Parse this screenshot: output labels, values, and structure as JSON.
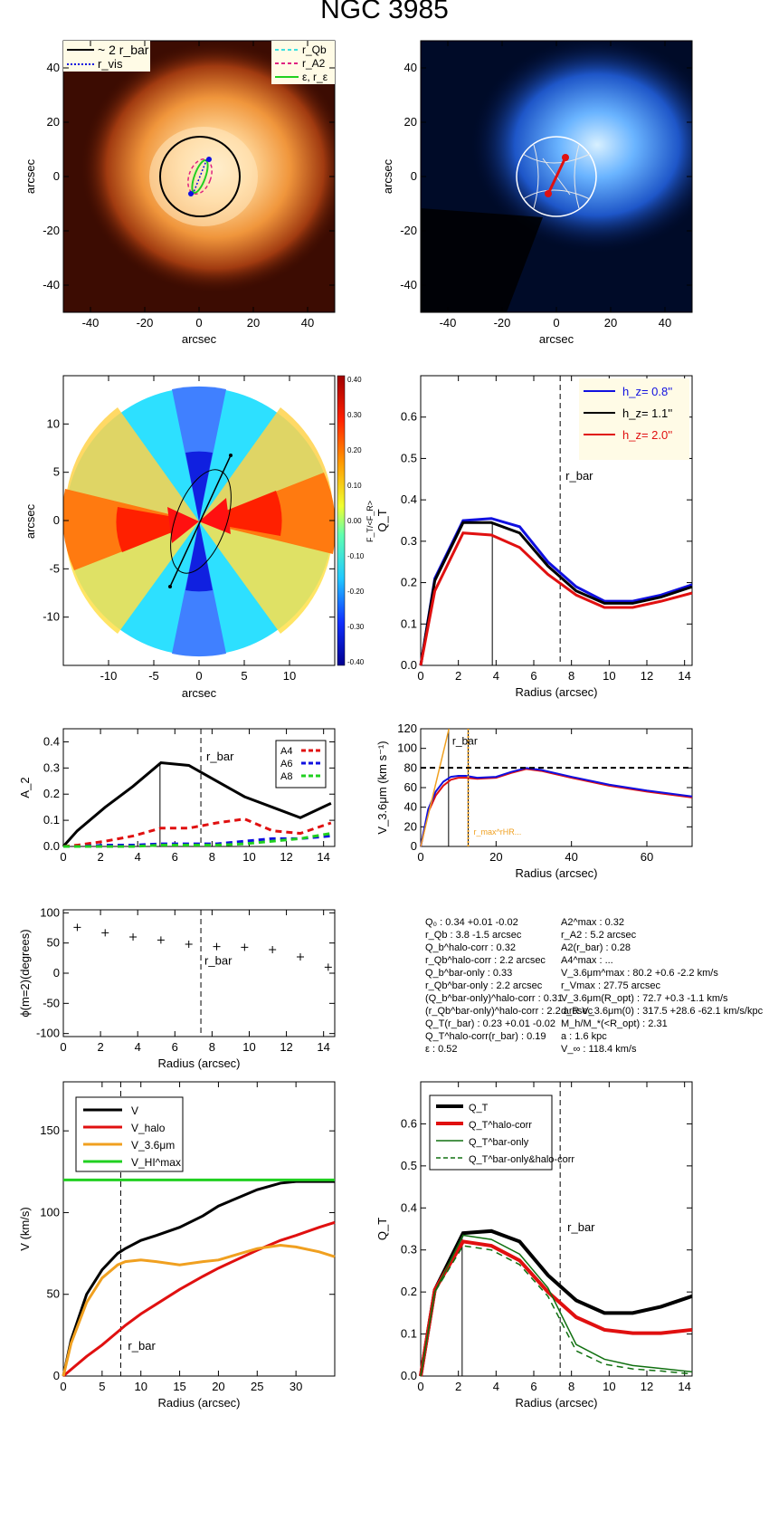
{
  "figure_title": "NGC 3985",
  "colors": {
    "black": "#000000",
    "blue": "#1010e0",
    "red": "#e01010",
    "orange": "#f0a020",
    "green": "#20d020",
    "cyan": "#40e0e0",
    "magenta": "#e02080",
    "darkgreen": "#107010"
  },
  "params": [
    "Q₀ : 0.34 +0.01 -0.02",
    "r_Qb : 3.8 -1.5 arcsec",
    "Q_b^halo-corr : 0.32",
    "r_Qb^halo-corr : 2.2 arcsec",
    "Q_b^bar-only : 0.33",
    "r_Qb^bar-only : 2.2 arcsec",
    "(Q_b^bar-only)^halo-corr : 0.31",
    "(r_Qb^bar-only)^halo-corr : 2.2 arcsec",
    "Q_T(r_bar) : 0.23 +0.01 -0.02",
    "Q_T^halo-corr(r_bar) : 0.19",
    "ε : 0.52",
    "A2^max : 0.32",
    "r_A2 : 5.2 arcsec",
    "A2(r_bar) : 0.28",
    "A4^max : ...",
    "V_3.6μm^max : 80.2 +0.6 -2.2 km/s",
    "r_Vmax : 27.75 arcsec",
    "V_3.6μm(R_opt) : 72.7 +0.3 -1.1 km/s",
    "d_R V_3.6μm(0) : 317.5 +28.6 -62.1 km/s/kpc",
    "M_h/M_*(<R_opt) : 2.31",
    "a : 1.6 kpc",
    "V_∞ : 118.4 km/s"
  ],
  "chart_data": [
    {
      "type": "heatmap",
      "panel": "image-contours",
      "xlabel": "arcsec",
      "ylabel": "arcsec",
      "xlim": [
        -50,
        50
      ],
      "ylim": [
        -50,
        50
      ],
      "xticks": [
        -40,
        -20,
        0,
        20,
        40
      ],
      "yticks": [
        -40,
        -20,
        0,
        20,
        40
      ],
      "legend_left": [
        "~ 2 r_bar",
        "r_vis"
      ],
      "legend_right": [
        "r_Qb",
        "r_A2",
        "ε, r_ε"
      ],
      "bar_radius_x2_arcsec": 14.8,
      "bar_pa_deg": 20
    },
    {
      "type": "heatmap",
      "panel": "force-field",
      "xlabel": "arcsec",
      "ylabel": "arcsec",
      "xlim": [
        -50,
        50
      ],
      "ylim": [
        -50,
        50
      ],
      "xticks": [
        -40,
        -20,
        0,
        20,
        40
      ],
      "yticks": [
        -40,
        -20,
        0,
        20,
        40
      ]
    },
    {
      "type": "heatmap",
      "panel": "tangential-force-ratio-map",
      "xlabel": "arcsec",
      "ylabel": "arcsec",
      "xlim": [
        -15,
        15
      ],
      "ylim": [
        -15,
        15
      ],
      "xticks": [
        -10,
        -5,
        0,
        5,
        10
      ],
      "yticks": [
        -10,
        -5,
        0,
        5,
        10
      ],
      "colorbar_label": "F_T/<F_R>",
      "colorbar_ticks": [
        "0.40",
        "0.30",
        "0.20",
        "0.10",
        "0.00",
        "-0.10",
        "-0.20",
        "-0.30",
        "-0.40"
      ],
      "range": [
        -0.4,
        0.4
      ]
    },
    {
      "type": "line",
      "panel": "QT-vs-radius",
      "xlabel": "Radius (arcsec)",
      "ylabel": "Q_T",
      "xlim": [
        0,
        14.4
      ],
      "ylim": [
        0,
        0.7
      ],
      "xticks": [
        0,
        2,
        4,
        6,
        8,
        10,
        12,
        14
      ],
      "yticks": [
        0.0,
        0.1,
        0.2,
        0.3,
        0.4,
        0.5,
        0.6
      ],
      "x": [
        0,
        0.75,
        2.25,
        3.75,
        5.25,
        6.75,
        8.25,
        9.75,
        11.25,
        12.75,
        14.4
      ],
      "series": [
        {
          "name": "h_z= 0.8''",
          "color": "blue",
          "values": [
            0,
            0.21,
            0.35,
            0.355,
            0.335,
            0.25,
            0.19,
            0.155,
            0.155,
            0.17,
            0.195
          ]
        },
        {
          "name": "h_z= 1.1''",
          "color": "black",
          "values": [
            0,
            0.205,
            0.345,
            0.345,
            0.32,
            0.24,
            0.18,
            0.15,
            0.15,
            0.165,
            0.19
          ]
        },
        {
          "name": "h_z= 2.0''",
          "color": "red",
          "values": [
            0,
            0.18,
            0.32,
            0.315,
            0.285,
            0.22,
            0.17,
            0.14,
            0.14,
            0.155,
            0.175
          ]
        }
      ],
      "vlines": [
        {
          "x": 3.8,
          "style": "solid"
        },
        {
          "x": 7.4,
          "style": "dashed",
          "label": "r_bar"
        }
      ]
    },
    {
      "type": "line",
      "panel": "fourier-amplitudes",
      "xlabel": "",
      "ylabel": "A_2",
      "xlim": [
        0,
        14.6
      ],
      "ylim": [
        0,
        0.45
      ],
      "xticks": [
        0,
        2,
        4,
        6,
        8,
        10,
        12,
        14
      ],
      "yticks": [
        0.0,
        0.1,
        0.2,
        0.3,
        0.4
      ],
      "x": [
        0,
        0.75,
        2.25,
        3.75,
        5.25,
        6.75,
        8.25,
        9.75,
        11.25,
        12.75,
        14.4
      ],
      "series": [
        {
          "name": "A2",
          "color": "black",
          "values": [
            0,
            0.06,
            0.15,
            0.23,
            0.32,
            0.31,
            0.25,
            0.19,
            0.15,
            0.11,
            0.165
          ]
        },
        {
          "name": "A4",
          "color": "red",
          "dashed": true,
          "values": [
            0,
            0.005,
            0.02,
            0.04,
            0.07,
            0.07,
            0.09,
            0.105,
            0.06,
            0.05,
            0.09
          ]
        },
        {
          "name": "A6",
          "color": "blue",
          "dashed": true,
          "values": [
            0,
            0,
            0.005,
            0.005,
            0.01,
            0.01,
            0.01,
            0.02,
            0.03,
            0.03,
            0.04
          ]
        },
        {
          "name": "A8",
          "color": "green",
          "dashed": true,
          "values": [
            0,
            0,
            0,
            0.0,
            0.005,
            0.005,
            0.005,
            0.01,
            0.02,
            0.03,
            0.05
          ]
        }
      ],
      "legend": [
        "A4",
        "A6",
        "A8"
      ],
      "vlines": [
        {
          "x": 5.2,
          "style": "solid"
        },
        {
          "x": 7.4,
          "style": "dashed",
          "label": "r_bar"
        }
      ]
    },
    {
      "type": "line",
      "panel": "rotation-curve-3.6um",
      "xlabel": "Radius (arcsec)",
      "ylabel": "V_3.6μm (km s⁻¹)",
      "xlim": [
        0,
        72
      ],
      "ylim": [
        0,
        120
      ],
      "xticks": [
        0,
        20,
        40,
        60
      ],
      "yticks": [
        0,
        20,
        40,
        60,
        80,
        100,
        120
      ],
      "x": [
        0,
        2,
        4,
        6,
        8,
        10,
        12,
        15,
        20,
        24,
        28,
        32,
        40,
        50,
        60,
        72
      ],
      "series": [
        {
          "name": "V_3.6μm",
          "color": "red",
          "values": [
            0,
            35,
            52,
            62,
            68,
            70,
            70,
            69,
            70,
            75,
            79,
            77,
            70,
            62,
            56,
            50
          ]
        },
        {
          "name": "V_3.6μm upper",
          "color": "blue",
          "values": [
            0,
            38,
            56,
            66,
            71,
            72,
            72,
            70,
            71,
            76,
            80,
            78,
            71,
            63,
            57,
            51
          ]
        }
      ],
      "hline": 80.2,
      "vlines": [
        {
          "x": 7.4,
          "label": "r_bar"
        },
        {
          "x": 12.6,
          "label": "r_max^rHR..."
        }
      ]
    },
    {
      "type": "scatter",
      "panel": "bar-phase",
      "xlabel": "Radius (arcsec)",
      "ylabel": "ϕ(m=2)(degrees)",
      "xlim": [
        0,
        14.6
      ],
      "ylim": [
        -105,
        105
      ],
      "xticks": [
        0,
        2,
        4,
        6,
        8,
        10,
        12,
        14
      ],
      "yticks": [
        -100,
        -50,
        0,
        50,
        100
      ],
      "x": [
        0.75,
        2.25,
        3.75,
        5.25,
        6.75,
        8.25,
        9.75,
        11.25,
        12.75,
        14.25
      ],
      "values": [
        76,
        67,
        60,
        55,
        48,
        44,
        43,
        39,
        27,
        10
      ],
      "vlines": [
        {
          "x": 7.4,
          "style": "dashed",
          "label": "r_bar"
        }
      ]
    },
    {
      "type": "line",
      "panel": "velocity-decomposition",
      "xlabel": "Radius (arcsec)",
      "ylabel": "V (km/s)",
      "xlim": [
        0,
        35
      ],
      "ylim": [
        0,
        180
      ],
      "xticks": [
        0,
        5,
        10,
        15,
        20,
        25,
        30
      ],
      "yticks": [
        0,
        50,
        100,
        150
      ],
      "x": [
        0,
        1,
        3,
        5,
        7,
        8,
        10,
        12,
        15,
        18,
        20,
        25,
        28,
        30,
        33,
        35
      ],
      "series": [
        {
          "name": "V",
          "color": "black",
          "values": [
            0,
            22,
            50,
            65,
            75,
            78,
            83,
            86,
            91,
            98,
            104,
            114,
            118,
            119,
            119,
            119
          ]
        },
        {
          "name": "V_halo",
          "color": "red",
          "values": [
            0,
            4,
            12,
            19,
            27,
            31,
            38,
            44,
            53,
            61,
            66,
            77,
            83,
            86,
            91,
            94
          ]
        },
        {
          "name": "V_3.6μm",
          "color": "orange",
          "values": [
            0,
            20,
            45,
            60,
            68,
            70,
            71,
            70,
            68,
            70,
            71,
            78,
            80,
            79,
            76,
            73
          ]
        },
        {
          "name": "V_HI^max",
          "color": "green",
          "values": [
            120,
            120,
            120,
            120,
            120,
            120,
            120,
            120,
            120,
            120,
            120,
            120,
            120,
            120,
            120,
            120
          ]
        }
      ],
      "legend": [
        "V",
        "V_halo",
        "V_3.6μm",
        "V_HI^max"
      ],
      "vlines": [
        {
          "x": 7.4,
          "style": "dashed",
          "label": "r_bar"
        }
      ]
    },
    {
      "type": "line",
      "panel": "QT-halo-correction",
      "xlabel": "Radius (arcsec)",
      "ylabel": "Q_T",
      "xlim": [
        0,
        14.4
      ],
      "ylim": [
        0,
        0.7
      ],
      "xticks": [
        0,
        2,
        4,
        6,
        8,
        10,
        12,
        14
      ],
      "yticks": [
        0.0,
        0.1,
        0.2,
        0.3,
        0.4,
        0.5,
        0.6
      ],
      "x": [
        0,
        0.75,
        2.25,
        3.75,
        5.25,
        6.75,
        8.25,
        9.75,
        11.25,
        12.75,
        14.4
      ],
      "series": [
        {
          "name": "Q_T",
          "color": "black",
          "width": 4,
          "values": [
            0,
            0.205,
            0.34,
            0.345,
            0.32,
            0.24,
            0.18,
            0.15,
            0.15,
            0.165,
            0.19
          ]
        },
        {
          "name": "Q_T^halo-corr",
          "color": "red",
          "width": 4,
          "values": [
            0,
            0.205,
            0.32,
            0.31,
            0.275,
            0.2,
            0.14,
            0.11,
            0.102,
            0.102,
            0.11
          ]
        },
        {
          "name": "Q_T^bar-only",
          "color": "darkgreen",
          "width": 1.5,
          "values": [
            0,
            0.2,
            0.335,
            0.325,
            0.29,
            0.21,
            0.075,
            0.04,
            0.025,
            0.018,
            0.01
          ]
        },
        {
          "name": "Q_T^bar-only&halo-corr",
          "color": "darkgreen",
          "width": 1.5,
          "dashed": true,
          "values": [
            0,
            0.2,
            0.31,
            0.3,
            0.265,
            0.19,
            0.06,
            0.028,
            0.017,
            0.012,
            0.005
          ]
        }
      ],
      "legend": [
        "Q_T",
        "Q_T^halo-corr",
        "Q_T^bar-only",
        "Q_T^bar-only&halo-corr"
      ],
      "vlines": [
        {
          "x": 2.2,
          "style": "solid"
        },
        {
          "x": 7.4,
          "style": "dashed",
          "label": "r_bar"
        }
      ]
    }
  ]
}
